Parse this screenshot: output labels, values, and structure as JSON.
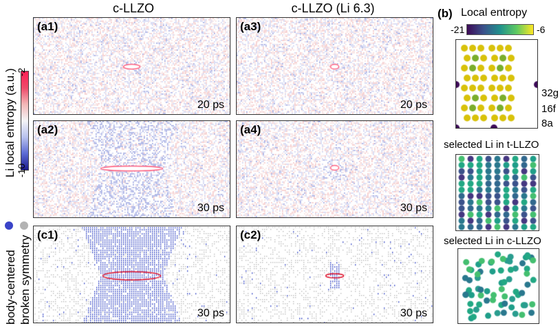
{
  "columns": {
    "left": "c-LLZO",
    "middle": "c-LLZO (Li 6.3)"
  },
  "colorbar_left": {
    "label": "Li local entropy (a.u.)",
    "max_label": "-2",
    "min_label": "-10",
    "colors": [
      "#1a1a8c",
      "#5c6bd4",
      "#b8c2ee",
      "#f4f4f6",
      "#f3b7b7",
      "#ee4a6a",
      "#ff1f55"
    ]
  },
  "legend_left": {
    "body_centered": "body-centered",
    "broken_symmetry": "broken symmetry",
    "body_color": "#3a44c8",
    "broken_color": "#b3b3b3"
  },
  "panels": {
    "a1": {
      "label": "(a1)",
      "time": "20 ps"
    },
    "a2": {
      "label": "(a2)",
      "time": "30 ps"
    },
    "a3": {
      "label": "(a3)",
      "time": "20 ps"
    },
    "a4": {
      "label": "(a4)",
      "time": "30 ps"
    },
    "c1": {
      "label": "(c1)",
      "time": "30 ps"
    },
    "c2": {
      "label": "(c2)",
      "time": "30 ps"
    }
  },
  "panel_b": {
    "label": "(b)",
    "title": "Local entropy",
    "cbar_min": "-21",
    "cbar_max": "-6",
    "cbar_colors": [
      "#3d0b57",
      "#3b528b",
      "#21918c",
      "#5ec962",
      "#fde725"
    ],
    "sites": [
      {
        "name": "32g",
        "color": "#d8c20a"
      },
      {
        "name": "16f",
        "color": "#7aae2c"
      },
      {
        "name": "8a",
        "color": "#3d0b57"
      }
    ],
    "t_title": "selected Li in t-LLZO",
    "c_title": "selected Li in c-LLZO"
  },
  "crack_color": "#e0102a"
}
